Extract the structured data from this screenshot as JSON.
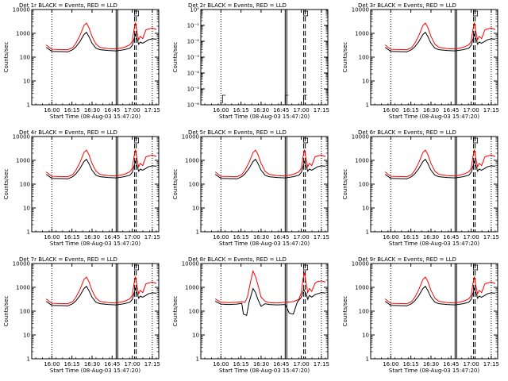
{
  "figure": {
    "start_time_label": "Start Time (08-Aug-03 15:47:20)",
    "ylabel": "Counts/sec",
    "colors": {
      "events": "#000000",
      "lld": "#ff0000",
      "background": "#ffffff"
    },
    "legend_text": "BLACK = Events, RED = LLD"
  },
  "chart_data": [
    {
      "type": "line",
      "title": "Det 1r BLACK = Events, RED = LLD",
      "scale": "log",
      "ylim": [
        1,
        15000
      ],
      "yticks": [
        "1",
        "10",
        "100",
        "1000",
        "10000"
      ],
      "xlim": [
        15.75,
        17.33
      ],
      "xticks": [
        "16:00",
        "16:15",
        "16:30",
        "16:45",
        "17:00",
        "17:15"
      ],
      "xlabel": "Start Time (08-Aug-03 15:47:20)",
      "series": [
        {
          "name": "Events",
          "color": "#000000",
          "variant": "normal"
        },
        {
          "name": "LLD",
          "color": "#ff0000",
          "variant": "normal"
        }
      ],
      "markers": {
        "dotted": [
          16.0,
          17.25
        ],
        "solid": [
          16.8,
          16.82
        ],
        "dashed": [
          17.03,
          17.05
        ],
        "flag_box_x": 17.05
      }
    },
    {
      "type": "line",
      "title": "Det 2r BLACK = Events, RED = LLD",
      "scale": "log_small",
      "ylim": [
        1e-06,
        1
      ],
      "yticks": [
        "10⁻⁶",
        "10⁻⁵",
        "10⁻⁴",
        "10⁻³",
        "10⁻²",
        "10⁻¹",
        "10⁰"
      ],
      "xlim": [
        15.75,
        17.33
      ],
      "xticks": [
        "16:00",
        "16:15",
        "16:30",
        "16:45",
        "17:00",
        "17:15"
      ],
      "xlabel": "Start Time (08-Aug-03 15:47:20)",
      "series": [],
      "markers": {
        "dotted": [
          16.0,
          17.25
        ],
        "solid": [
          16.8,
          16.82
        ],
        "dashed": [
          17.03,
          17.05
        ],
        "flag_box_x": 17.05
      }
    },
    {
      "type": "line",
      "title": "Det 3r BLACK = Events, RED = LLD",
      "scale": "log",
      "ylim": [
        1,
        15000
      ],
      "yticks": [
        "1",
        "10",
        "100",
        "1000",
        "10000"
      ],
      "xlim": [
        15.75,
        17.33
      ],
      "xticks": [
        "16:00",
        "16:15",
        "16:30",
        "16:45",
        "17:00",
        "17:15"
      ],
      "xlabel": "Start Time (08-Aug-03 15:47:20)",
      "series": [
        {
          "name": "Events",
          "color": "#000000",
          "variant": "normal"
        },
        {
          "name": "LLD",
          "color": "#ff0000",
          "variant": "normal"
        }
      ],
      "markers": {
        "dotted": [
          16.0,
          17.25
        ],
        "solid": [
          16.8,
          16.82
        ],
        "dashed": [
          17.03,
          17.05
        ],
        "flag_box_x": 17.05
      }
    },
    {
      "type": "line",
      "title": "Det 4r BLACK = Events, RED = LLD",
      "scale": "log",
      "ylim": [
        1,
        15000
      ],
      "yticks": [
        "1",
        "10",
        "100",
        "1000",
        "10000"
      ],
      "xlim": [
        15.75,
        17.33
      ],
      "xticks": [
        "16:00",
        "16:15",
        "16:30",
        "16:45",
        "17:00",
        "17:15"
      ],
      "xlabel": "Start Time (08-Aug-03 15:47:20)",
      "series": [
        {
          "name": "Events",
          "color": "#000000",
          "variant": "normal"
        },
        {
          "name": "LLD",
          "color": "#ff0000",
          "variant": "normal"
        }
      ],
      "markers": {
        "dotted": [
          16.0,
          17.25
        ],
        "solid": [
          16.8,
          16.82
        ],
        "dashed": [
          17.03,
          17.05
        ],
        "flag_box_x": 17.05
      }
    },
    {
      "type": "line",
      "title": "Det 5r BLACK = Events, RED = LLD",
      "scale": "log",
      "ylim": [
        1,
        15000
      ],
      "yticks": [
        "1",
        "10",
        "100",
        "1000",
        "10000"
      ],
      "xlim": [
        15.75,
        17.33
      ],
      "xticks": [
        "16:00",
        "16:15",
        "16:30",
        "16:45",
        "17:00",
        "17:15"
      ],
      "xlabel": "Start Time (08-Aug-03 15:47:20)",
      "series": [
        {
          "name": "Events",
          "color": "#000000",
          "variant": "normal"
        },
        {
          "name": "LLD",
          "color": "#ff0000",
          "variant": "normal"
        }
      ],
      "markers": {
        "dotted": [
          16.0,
          17.25
        ],
        "solid": [
          16.8,
          16.82
        ],
        "dashed": [
          17.03,
          17.05
        ],
        "flag_box_x": 17.05
      }
    },
    {
      "type": "line",
      "title": "Det 6r BLACK = Events, RED = LLD",
      "scale": "log",
      "ylim": [
        1,
        15000
      ],
      "yticks": [
        "1",
        "10",
        "100",
        "1000",
        "10000"
      ],
      "xlim": [
        15.75,
        17.33
      ],
      "xticks": [
        "16:00",
        "16:15",
        "16:30",
        "16:45",
        "17:00",
        "17:15"
      ],
      "xlabel": "Start Time (08-Aug-03 15:47:20)",
      "series": [
        {
          "name": "Events",
          "color": "#000000",
          "variant": "normal"
        },
        {
          "name": "LLD",
          "color": "#ff0000",
          "variant": "normal"
        }
      ],
      "markers": {
        "dotted": [
          16.0,
          17.25
        ],
        "solid": [
          16.8,
          16.82
        ],
        "dashed": [
          17.03,
          17.05
        ],
        "flag_box_x": 17.05
      }
    },
    {
      "type": "line",
      "title": "Det 7r BLACK = Events, RED = LLD",
      "scale": "log",
      "ylim": [
        1,
        15000
      ],
      "yticks": [
        "1",
        "10",
        "100",
        "1000",
        "10000"
      ],
      "xlim": [
        15.75,
        17.33
      ],
      "xticks": [
        "16:00",
        "16:15",
        "16:30",
        "16:45",
        "17:00",
        "17:15"
      ],
      "xlabel": "Start Time (08-Aug-03 15:47:20)",
      "series": [
        {
          "name": "Events",
          "color": "#000000",
          "variant": "normal"
        },
        {
          "name": "LLD",
          "color": "#ff0000",
          "variant": "normal"
        }
      ],
      "markers": {
        "dotted": [
          16.0,
          17.25
        ],
        "solid": [
          16.8,
          16.82
        ],
        "dashed": [
          17.03,
          17.05
        ],
        "flag_box_x": 17.05
      }
    },
    {
      "type": "line",
      "title": "Det 8r BLACK = Events, RED = LLD",
      "scale": "log",
      "ylim": [
        1,
        15000
      ],
      "yticks": [
        "1",
        "10",
        "100",
        "1000",
        "10000"
      ],
      "xlim": [
        15.75,
        17.33
      ],
      "xticks": [
        "16:00",
        "16:15",
        "16:30",
        "16:45",
        "17:00",
        "17:15"
      ],
      "xlabel": "Start Time (08-Aug-03 15:47:20)",
      "series": [
        {
          "name": "Events",
          "color": "#000000",
          "variant": "det8"
        },
        {
          "name": "LLD",
          "color": "#ff0000",
          "variant": "det8"
        }
      ],
      "markers": {
        "dotted": [
          16.0,
          17.25
        ],
        "solid": [
          16.8,
          16.82
        ],
        "dashed": [
          17.03,
          17.05
        ],
        "flag_box_x": 17.05
      }
    },
    {
      "type": "line",
      "title": "Det 9r BLACK = Events, RED = LLD",
      "scale": "log",
      "ylim": [
        1,
        15000
      ],
      "yticks": [
        "1",
        "10",
        "100",
        "1000",
        "10000"
      ],
      "xlim": [
        15.75,
        17.33
      ],
      "xticks": [
        "16:00",
        "16:15",
        "16:30",
        "16:45",
        "17:00",
        "17:15"
      ],
      "xlabel": "Start Time (08-Aug-03 15:47:20)",
      "series": [
        {
          "name": "Events",
          "color": "#000000",
          "variant": "normal"
        },
        {
          "name": "LLD",
          "color": "#ff0000",
          "variant": "normal"
        }
      ],
      "markers": {
        "dotted": [
          16.0,
          17.25
        ],
        "solid": [
          16.8,
          16.82
        ],
        "dashed": [
          17.03,
          17.05
        ],
        "flag_box_x": 17.05
      }
    }
  ],
  "lightcurves": {
    "normal": {
      "lld": [
        [
          15.93,
          420
        ],
        [
          16.0,
          270
        ],
        [
          16.1,
          265
        ],
        [
          16.2,
          260
        ],
        [
          16.26,
          320
        ],
        [
          16.3,
          500
        ],
        [
          16.35,
          1100
        ],
        [
          16.4,
          3000
        ],
        [
          16.43,
          3800
        ],
        [
          16.46,
          2500
        ],
        [
          16.5,
          1000
        ],
        [
          16.55,
          450
        ],
        [
          16.6,
          330
        ],
        [
          16.7,
          290
        ],
        [
          16.8,
          280
        ],
        [
          16.9,
          330
        ],
        [
          16.97,
          420
        ],
        [
          17.0,
          600
        ],
        [
          17.02,
          1800
        ],
        [
          17.04,
          4000
        ],
        [
          17.06,
          1500
        ],
        [
          17.08,
          700
        ],
        [
          17.1,
          1000
        ],
        [
          17.13,
          800
        ],
        [
          17.17,
          1900
        ],
        [
          17.2,
          2100
        ],
        [
          17.25,
          2300
        ],
        [
          17.3,
          2000
        ]
      ],
      "events": [
        [
          15.93,
          330
        ],
        [
          16.0,
          220
        ],
        [
          16.1,
          215
        ],
        [
          16.2,
          210
        ],
        [
          16.26,
          260
        ],
        [
          16.3,
          350
        ],
        [
          16.35,
          600
        ],
        [
          16.4,
          1200
        ],
        [
          16.43,
          1500
        ],
        [
          16.46,
          1000
        ],
        [
          16.5,
          500
        ],
        [
          16.55,
          300
        ],
        [
          16.6,
          260
        ],
        [
          16.7,
          240
        ],
        [
          16.8,
          230
        ],
        [
          16.9,
          260
        ],
        [
          16.97,
          300
        ],
        [
          17.0,
          400
        ],
        [
          17.02,
          700
        ],
        [
          17.04,
          1200
        ],
        [
          17.06,
          800
        ],
        [
          17.08,
          450
        ],
        [
          17.1,
          560
        ],
        [
          17.13,
          500
        ],
        [
          17.17,
          600
        ],
        [
          17.2,
          700
        ],
        [
          17.25,
          780
        ],
        [
          17.3,
          750
        ]
      ]
    },
    "det8": {
      "lld": [
        [
          15.93,
          420
        ],
        [
          16.0,
          300
        ],
        [
          16.1,
          290
        ],
        [
          16.2,
          300
        ],
        [
          16.26,
          320
        ],
        [
          16.3,
          300
        ],
        [
          16.33,
          500
        ],
        [
          16.37,
          2500
        ],
        [
          16.4,
          7000
        ],
        [
          16.43,
          4000
        ],
        [
          16.46,
          1800
        ],
        [
          16.5,
          500
        ],
        [
          16.55,
          330
        ],
        [
          16.6,
          290
        ],
        [
          16.7,
          280
        ],
        [
          16.8,
          300
        ],
        [
          16.9,
          320
        ],
        [
          16.97,
          400
        ],
        [
          17.0,
          800
        ],
        [
          17.02,
          3000
        ],
        [
          17.04,
          6000
        ],
        [
          17.06,
          2000
        ],
        [
          17.08,
          800
        ],
        [
          17.1,
          1200
        ],
        [
          17.13,
          900
        ],
        [
          17.17,
          2000
        ],
        [
          17.2,
          2400
        ],
        [
          17.25,
          2600
        ],
        [
          17.3,
          2300
        ]
      ],
      "events": [
        [
          15.93,
          330
        ],
        [
          16.0,
          250
        ],
        [
          16.1,
          240
        ],
        [
          16.2,
          250
        ],
        [
          16.26,
          270
        ],
        [
          16.28,
          90
        ],
        [
          16.32,
          80
        ],
        [
          16.35,
          300
        ],
        [
          16.4,
          1200
        ],
        [
          16.43,
          800
        ],
        [
          16.46,
          400
        ],
        [
          16.5,
          200
        ],
        [
          16.55,
          260
        ],
        [
          16.6,
          240
        ],
        [
          16.7,
          230
        ],
        [
          16.8,
          240
        ],
        [
          16.85,
          100
        ],
        [
          16.9,
          90
        ],
        [
          16.95,
          300
        ],
        [
          17.0,
          500
        ],
        [
          17.03,
          1100
        ],
        [
          17.06,
          700
        ],
        [
          17.08,
          400
        ],
        [
          17.1,
          600
        ],
        [
          17.13,
          500
        ],
        [
          17.17,
          650
        ],
        [
          17.2,
          700
        ],
        [
          17.25,
          800
        ],
        [
          17.3,
          760
        ]
      ]
    }
  }
}
